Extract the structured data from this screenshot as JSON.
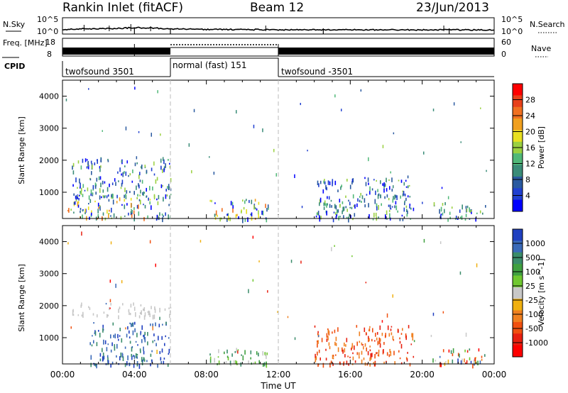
{
  "header": {
    "title": "Rankin Inlet (fitACF)",
    "beam": "Beam 12",
    "date": "23/Jun/2013"
  },
  "chart_data": [
    {
      "type": "line",
      "title": "",
      "ylabel_left": "N.Sky",
      "ylabel_right": "N.Search",
      "left_ticks": [
        "10^5",
        "10^0"
      ],
      "right_ticks": [
        "10^5",
        "10^0"
      ],
      "series": [
        {
          "name": "N.Sky",
          "style": "solid",
          "x": [
            0,
            1,
            2,
            3,
            4,
            5,
            6,
            7,
            8,
            9,
            10,
            11,
            12,
            13,
            14,
            15,
            16,
            17,
            18,
            19,
            20,
            21,
            22,
            23,
            24
          ],
          "values": [
            0.8,
            1.0,
            1.1,
            1.2,
            1.6,
            1.4,
            1.0,
            0.9,
            0.8,
            0.8,
            0.7,
            0.7,
            0.6,
            0.6,
            0.6,
            0.6,
            0.6,
            0.6,
            0.6,
            0.6,
            0.6,
            0.6,
            0.6,
            0.6,
            0.6
          ]
        },
        {
          "name": "N.Search",
          "style": "dotted",
          "x": [],
          "values": []
        }
      ]
    },
    {
      "type": "line",
      "ylabel_left": "Freq. [MHz]",
      "ylabel_right": "Nave",
      "left_ticks": [
        "18",
        "8"
      ],
      "right_ticks": [
        "60",
        "0"
      ],
      "series": [
        {
          "name": "Freq.",
          "style": "solid-band",
          "segments": [
            [
              0,
              6
            ],
            [
              12,
              24
            ]
          ],
          "value": "10.5"
        },
        {
          "name": "Nave",
          "style": "dotted",
          "segments": [
            [
              6,
              12
            ]
          ],
          "value": "high"
        }
      ]
    },
    {
      "type": "table",
      "label": "CPID",
      "segments": [
        {
          "start": 0,
          "end": 6,
          "label": "twofsound 3501"
        },
        {
          "start": 6,
          "end": 12,
          "label": "normal (fast) 151"
        },
        {
          "start": 12,
          "end": 24,
          "label": "twofsound -3501"
        }
      ]
    },
    {
      "type": "heatmap",
      "quantity": "Power",
      "ylabel": "Slant Range [km]",
      "ylim": [
        180,
        4500
      ],
      "yticks": [
        1000,
        2000,
        3000,
        4000
      ],
      "colorbar": {
        "label": "Power [dB]",
        "ticks": [
          "28",
          "24",
          "20",
          "16",
          "12",
          "8",
          "4"
        ],
        "colors": [
          "#ff0000",
          "#e8401a",
          "#f07020",
          "#f0a020",
          "#e8e020",
          "#9ad040",
          "#50b878",
          "#3a8c78",
          "#2a5aa0",
          "#2040d0",
          "#0000ff"
        ]
      },
      "regions": [
        {
          "x": [
            0.2,
            6.0
          ],
          "y": [
            180,
            900
          ],
          "level": "high"
        },
        {
          "x": [
            0.5,
            6.0
          ],
          "y": [
            900,
            2100
          ],
          "level": "medium"
        },
        {
          "x": [
            8.0,
            11.5
          ],
          "y": [
            180,
            800
          ],
          "level": "high"
        },
        {
          "x": [
            14.0,
            19.5
          ],
          "y": [
            180,
            1550
          ],
          "level": "medium"
        },
        {
          "x": [
            20.5,
            23.5
          ],
          "y": [
            180,
            700
          ],
          "level": "medium"
        }
      ]
    },
    {
      "type": "heatmap",
      "quantity": "Velocity",
      "ylabel": "Slant Range [km]",
      "ylim": [
        180,
        4500
      ],
      "yticks": [
        1000,
        2000,
        3000,
        4000
      ],
      "xlabel": "Time UT",
      "xticks": [
        "00:00",
        "04:00",
        "08:00",
        "12:00",
        "16:00",
        "20:00",
        "00:00"
      ],
      "xlim": [
        0,
        24
      ],
      "colorbar": {
        "label": "Velocity [m s^-1]",
        "ticks": [
          "1000",
          "500",
          "100",
          "25",
          "-25",
          "-100",
          "-500",
          "-1000"
        ],
        "colors": [
          "#2040c0",
          "#3a6ab8",
          "#3a8c6a",
          "#40a040",
          "#70c830",
          "#c8c8c8",
          "#f0b010",
          "#f08020",
          "#f05010",
          "#e82010",
          "#ff0000"
        ]
      },
      "regions": [
        {
          "x": [
            0.5,
            6.0
          ],
          "y": [
            1700,
            2100
          ],
          "level": "near-zero"
        },
        {
          "x": [
            1.5,
            6.0
          ],
          "y": [
            180,
            1500
          ],
          "level": "positive"
        },
        {
          "x": [
            8.0,
            11.5
          ],
          "y": [
            180,
            700
          ],
          "level": "small-positive"
        },
        {
          "x": [
            14.0,
            19.5
          ],
          "y": [
            180,
            1400
          ],
          "level": "negative"
        },
        {
          "x": [
            20.5,
            23.5
          ],
          "y": [
            180,
            700
          ],
          "level": "mixed"
        }
      ]
    }
  ]
}
